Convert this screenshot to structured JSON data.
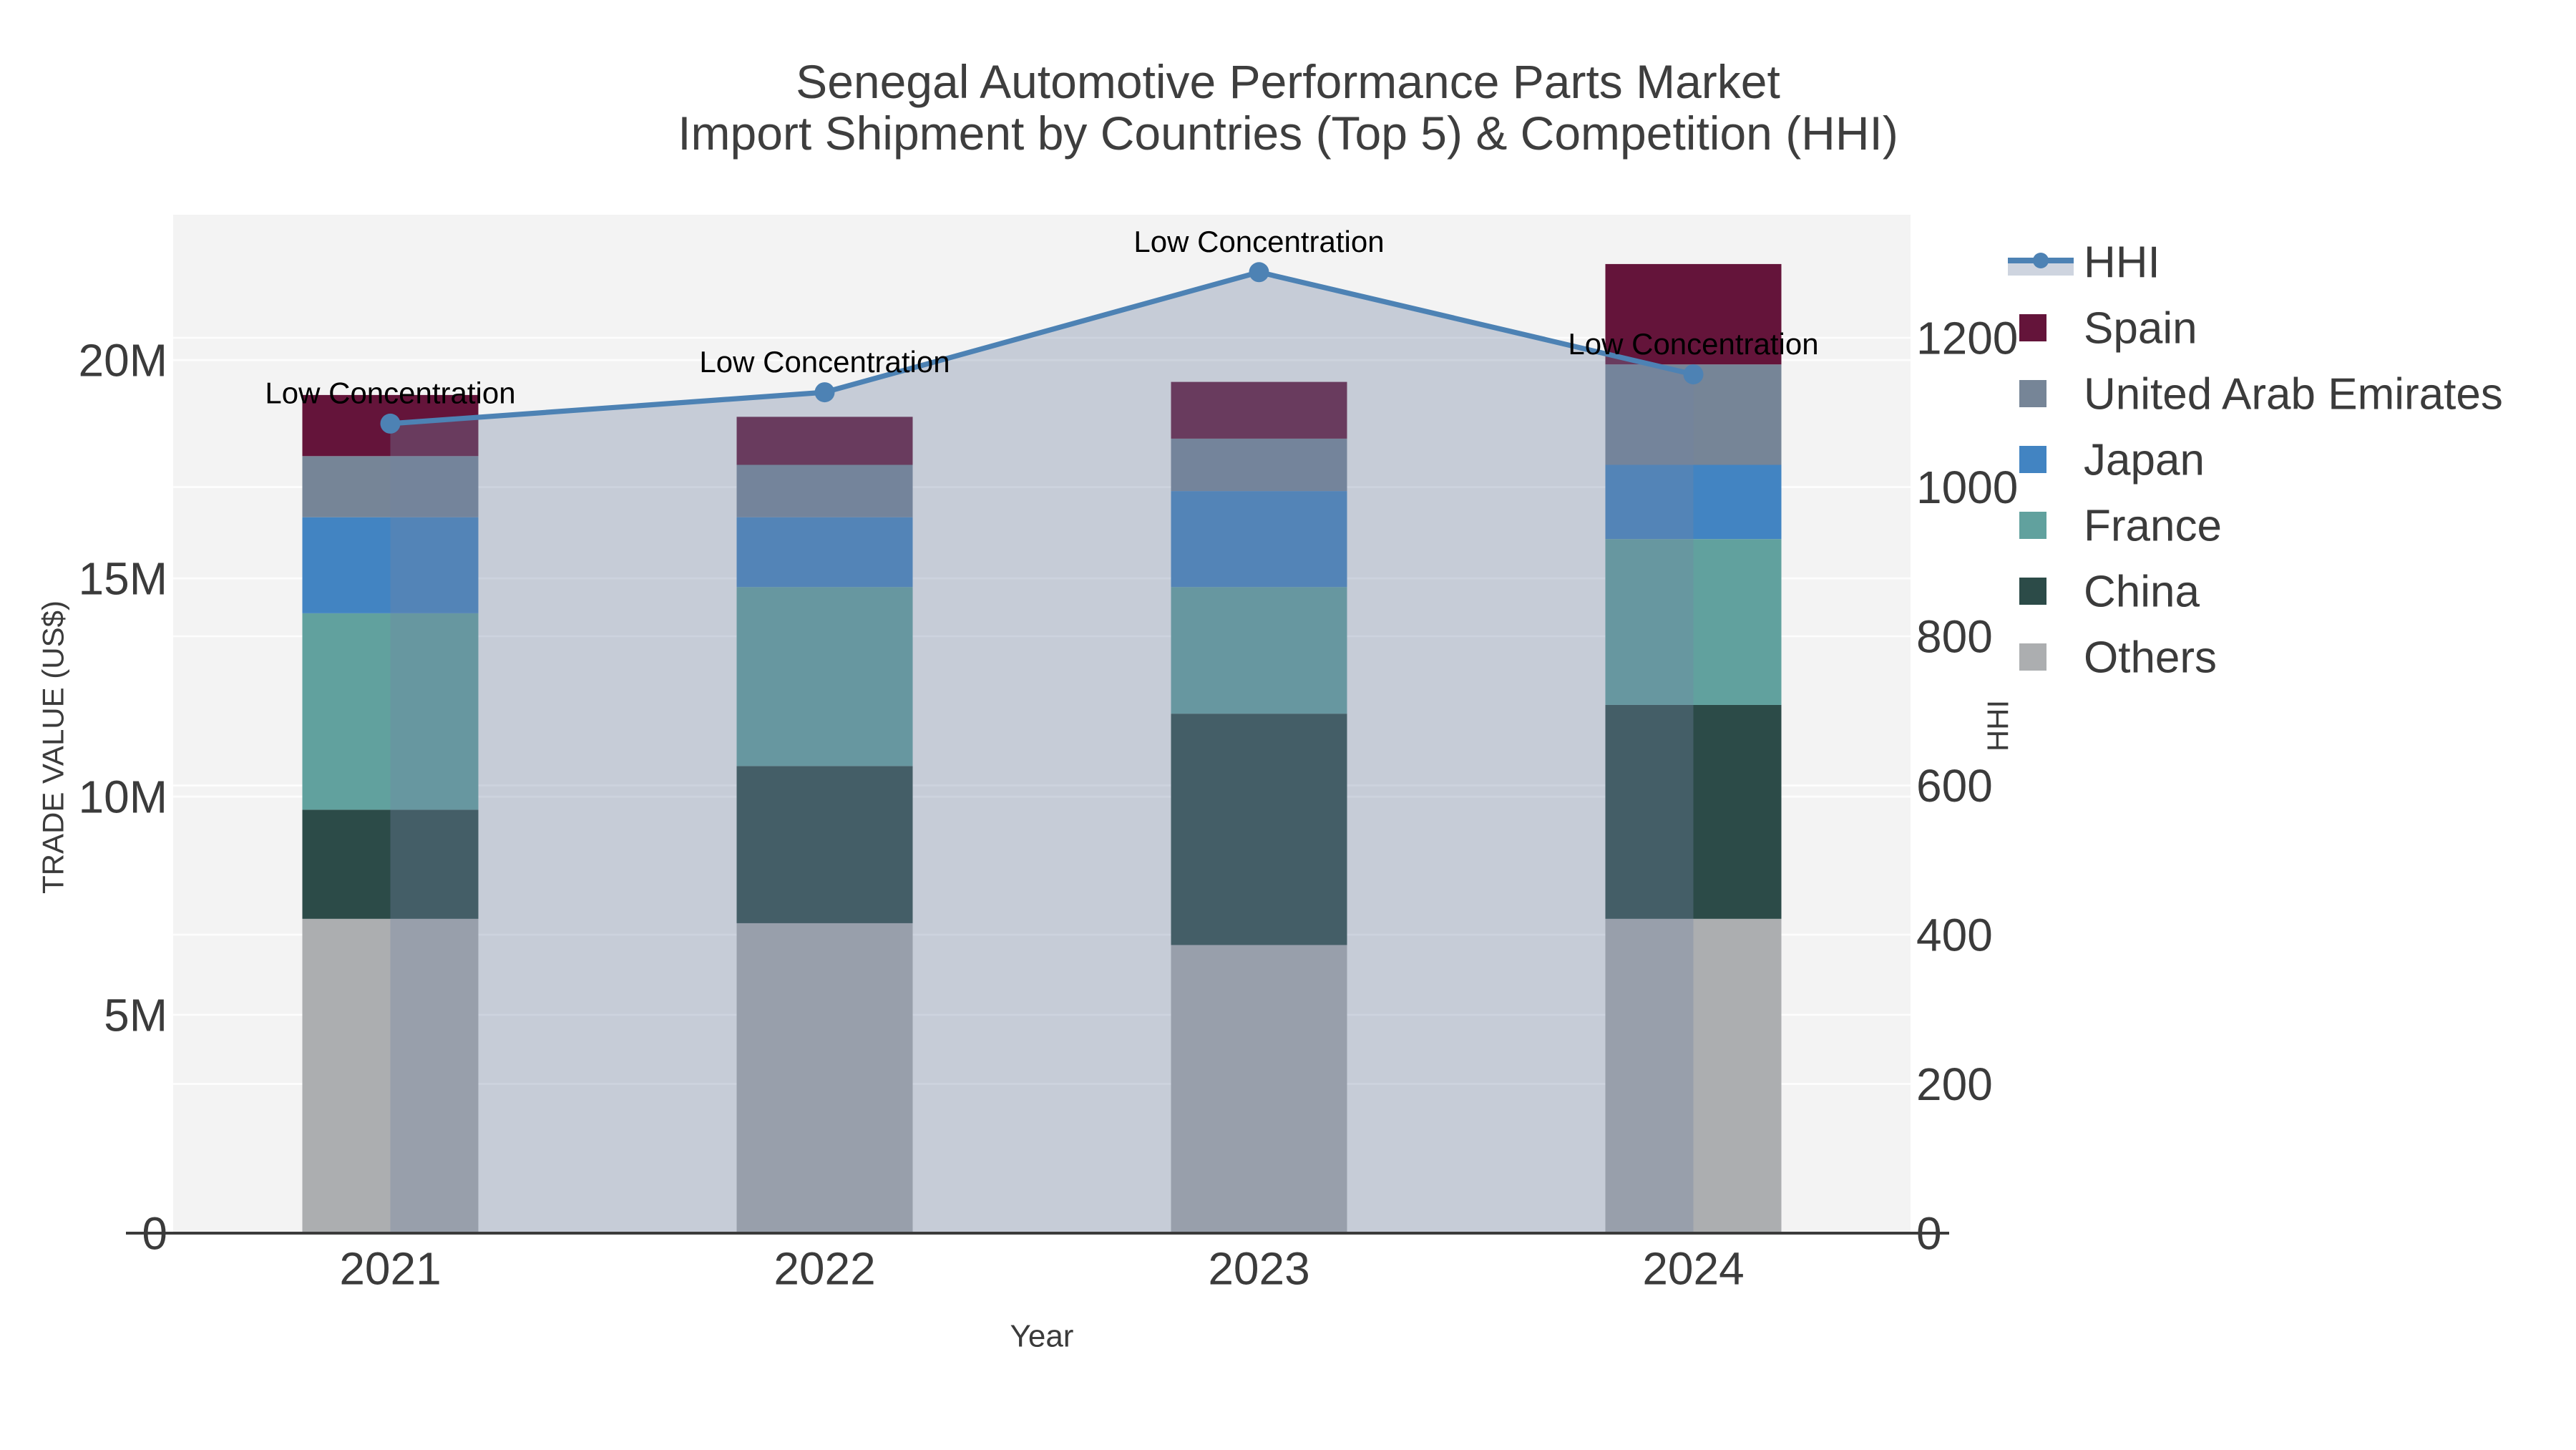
{
  "meta": {
    "title_line1": "Senegal Automotive Performance Parts Market",
    "title_line2": "Import Shipment by Countries (Top 5) & Competition (HHI)"
  },
  "chart_data": {
    "type": "bar",
    "variant": "stacked-bars-with-line-on-secondary-axis",
    "title": "Senegal Automotive Performance Parts Market Import Shipment by Countries (Top 5) & Competition (HHI)",
    "categories": [
      "2021",
      "2022",
      "2023",
      "2024"
    ],
    "xlabel": "Year",
    "y_left": {
      "label": "TRADE VALUE (US$)",
      "tick_labels": [
        "0",
        "5M",
        "10M",
        "15M",
        "20M"
      ],
      "tick_values_musd": [
        0,
        5,
        10,
        15,
        20
      ],
      "range_musd": [
        0,
        23.33
      ],
      "grid": true
    },
    "y_right": {
      "label": "HHI",
      "tick_labels": [
        "0",
        "200",
        "400",
        "600",
        "800",
        "1000",
        "1200"
      ],
      "tick_values": [
        0,
        200,
        400,
        600,
        800,
        1000,
        1200
      ],
      "range": [
        0,
        1365
      ],
      "grid": true
    },
    "stack_series_bottom_to_top": [
      {
        "name": "Others",
        "color": "#ACAEB0",
        "values_musd": [
          7.2,
          7.1,
          6.6,
          7.2
        ]
      },
      {
        "name": "China",
        "color": "#2C4B48",
        "values_musd": [
          2.5,
          3.6,
          5.3,
          4.9
        ]
      },
      {
        "name": "France",
        "color": "#61A19E",
        "values_musd": [
          4.5,
          4.1,
          2.9,
          3.8
        ]
      },
      {
        "name": "Japan",
        "color": "#4284C2",
        "values_musd": [
          2.2,
          1.6,
          2.2,
          1.7
        ]
      },
      {
        "name": "United Arab Emirates",
        "color": "#768597",
        "values_musd": [
          1.4,
          1.2,
          1.2,
          2.3
        ]
      },
      {
        "name": "Spain",
        "color": "#64143A",
        "values_musd": [
          1.4,
          1.1,
          1.3,
          2.3
        ]
      }
    ],
    "bar_totals_musd": [
      19.2,
      18.7,
      19.5,
      22.2
    ],
    "hhi_line": {
      "name": "HHI",
      "color": "#4D82B4",
      "area_fill": "rgba(116,133,162,0.35)",
      "values": [
        1085,
        1127,
        1288,
        1151
      ]
    },
    "annotations": [
      {
        "text": "Low Concentration",
        "category": "2021"
      },
      {
        "text": "Low Concentration",
        "category": "2022"
      },
      {
        "text": "Low Concentration",
        "category": "2023"
      },
      {
        "text": "Low Concentration",
        "category": "2024"
      }
    ],
    "legend": [
      {
        "label": "HHI",
        "type": "line",
        "color": "#4D82B4"
      },
      {
        "label": "Spain",
        "type": "swatch",
        "color": "#64143A"
      },
      {
        "label": "United Arab Emirates",
        "type": "swatch",
        "color": "#768597"
      },
      {
        "label": "Japan",
        "type": "swatch",
        "color": "#4284C2"
      },
      {
        "label": "France",
        "type": "swatch",
        "color": "#61A19E"
      },
      {
        "label": "China",
        "type": "swatch",
        "color": "#2C4B48"
      },
      {
        "label": "Others",
        "type": "swatch",
        "color": "#ACAEB0"
      }
    ],
    "colors": {
      "plot_background": "#F3F3F3",
      "gridline": "#FFFFFF",
      "axis_line": "#3B3B3B",
      "tick_text": "#3B3B3B",
      "title_text": "#3E3E3E",
      "annotation_text": "#000000"
    }
  }
}
